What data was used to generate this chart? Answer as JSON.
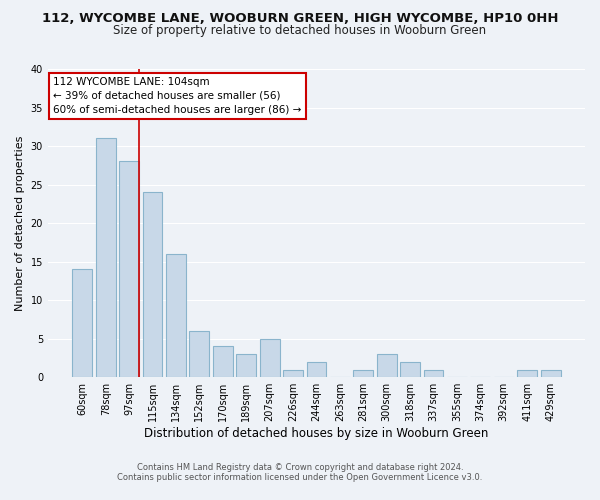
{
  "title": "112, WYCOMBE LANE, WOOBURN GREEN, HIGH WYCOMBE, HP10 0HH",
  "subtitle": "Size of property relative to detached houses in Wooburn Green",
  "xlabel": "Distribution of detached houses by size in Wooburn Green",
  "ylabel": "Number of detached properties",
  "bar_labels": [
    "60sqm",
    "78sqm",
    "97sqm",
    "115sqm",
    "134sqm",
    "152sqm",
    "170sqm",
    "189sqm",
    "207sqm",
    "226sqm",
    "244sqm",
    "263sqm",
    "281sqm",
    "300sqm",
    "318sqm",
    "337sqm",
    "355sqm",
    "374sqm",
    "392sqm",
    "411sqm",
    "429sqm"
  ],
  "bar_values": [
    14,
    31,
    28,
    24,
    16,
    6,
    4,
    3,
    5,
    1,
    2,
    0,
    1,
    3,
    2,
    1,
    0,
    0,
    0,
    1,
    1
  ],
  "bar_color": "#c8d8e8",
  "bar_edge_color": "#8ab4cc",
  "highlight_bar_index": 2,
  "vline_color": "#cc0000",
  "vline_x_offset": 0.425,
  "ylim": [
    0,
    40
  ],
  "yticks": [
    0,
    5,
    10,
    15,
    20,
    25,
    30,
    35,
    40
  ],
  "annotation_title": "112 WYCOMBE LANE: 104sqm",
  "annotation_line1": "← 39% of detached houses are smaller (56)",
  "annotation_line2": "60% of semi-detached houses are larger (86) →",
  "annotation_box_color": "#ffffff",
  "annotation_box_edge": "#cc0000",
  "footer1": "Contains HM Land Registry data © Crown copyright and database right 2024.",
  "footer2": "Contains public sector information licensed under the Open Government Licence v3.0.",
  "bg_color": "#eef2f7",
  "grid_color": "#ffffff",
  "title_fontsize": 9.5,
  "subtitle_fontsize": 8.5,
  "xlabel_fontsize": 8.5,
  "ylabel_fontsize": 8.0,
  "tick_fontsize": 7.0,
  "annot_fontsize": 7.5,
  "footer_fontsize": 6.0
}
